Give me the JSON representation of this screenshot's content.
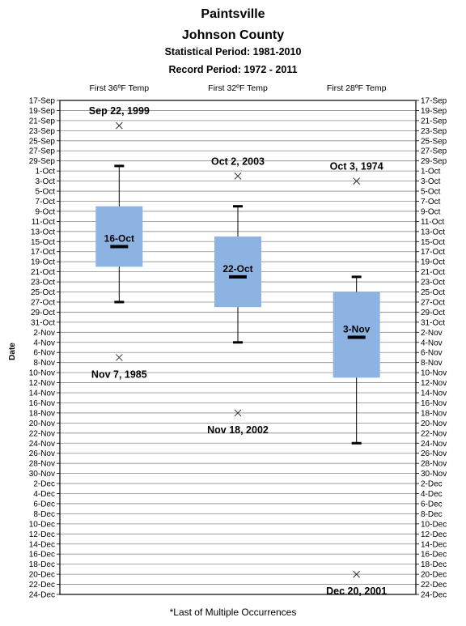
{
  "titles": {
    "line1": "Paintsville",
    "line2": "Johnson  County",
    "line3": "Statistical Period: 1981-2010",
    "line4": "Record Period: 1972 - 2011"
  },
  "footnote": "*Last of Multiple Occurrences",
  "chart_data": {
    "type": "box",
    "ylabel": "Date",
    "y_ticks": [
      "17-Sep",
      "19-Sep",
      "21-Sep",
      "23-Sep",
      "25-Sep",
      "27-Sep",
      "29-Sep",
      "1-Oct",
      "3-Oct",
      "5-Oct",
      "7-Oct",
      "9-Oct",
      "11-Oct",
      "13-Oct",
      "15-Oct",
      "17-Oct",
      "19-Oct",
      "21-Oct",
      "23-Oct",
      "25-Oct",
      "27-Oct",
      "29-Oct",
      "31-Oct",
      "2-Nov",
      "4-Nov",
      "6-Nov",
      "8-Nov",
      "10-Nov",
      "12-Nov",
      "14-Nov",
      "16-Nov",
      "18-Nov",
      "20-Nov",
      "22-Nov",
      "24-Nov",
      "26-Nov",
      "28-Nov",
      "30-Nov",
      "2-Dec",
      "4-Dec",
      "6-Dec",
      "8-Dec",
      "10-Dec",
      "12-Dec",
      "14-Dec",
      "16-Dec",
      "18-Dec",
      "20-Dec",
      "22-Dec",
      "24-Dec"
    ],
    "y_range": [
      "17-Sep",
      "24-Dec"
    ],
    "grid": true,
    "box_color": "#8db3e2",
    "categories": [
      {
        "label": "First 36ºF Temp",
        "whisker_low": "30-Sep",
        "q1": "8-Oct",
        "median": "16-Oct",
        "q3": "20-Oct",
        "whisker_high": "27-Oct",
        "median_label": "16-Oct",
        "outliers": [
          {
            "date": "22-Sep",
            "label": "Sep 22, 1999",
            "label_pos": "above"
          },
          {
            "date": "7-Nov",
            "label": "Nov 7, 1985",
            "label_pos": "below"
          }
        ]
      },
      {
        "label": "First 32ºF Temp",
        "whisker_low": "8-Oct",
        "q1": "14-Oct",
        "median": "22-Oct",
        "q3": "28-Oct",
        "whisker_high": "4-Nov",
        "median_label": "22-Oct",
        "outliers": [
          {
            "date": "2-Oct",
            "label": "Oct 2, 2003",
            "label_pos": "above"
          },
          {
            "date": "18-Nov",
            "label": "Nov 18, 2002",
            "label_pos": "below"
          }
        ]
      },
      {
        "label": "First 28ºF Temp",
        "whisker_low": "22-Oct",
        "q1": "25-Oct",
        "median": "3-Nov",
        "q3": "11-Nov",
        "whisker_high": "24-Nov",
        "median_label": "3-Nov",
        "outliers": [
          {
            "date": "3-Oct",
            "label": "Oct 3, 1974",
            "label_pos": "above"
          },
          {
            "date": "20-Dec",
            "label": "Dec 20, 2001",
            "label_pos": "below"
          }
        ]
      }
    ]
  }
}
